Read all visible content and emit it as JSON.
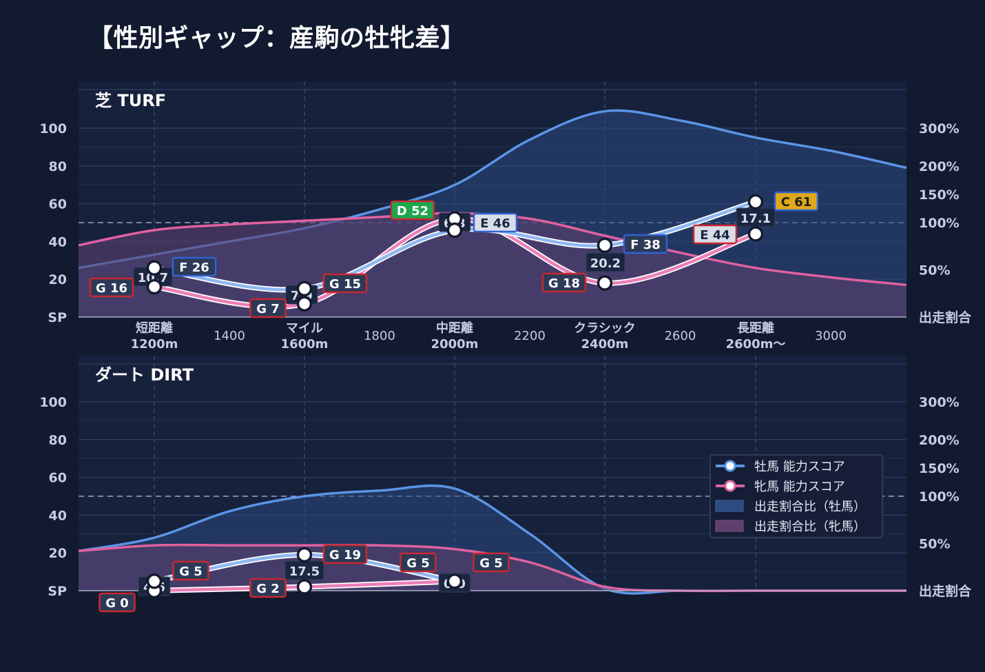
{
  "title": "【性別ギャップ：産駒の牡牝差】",
  "colors": {
    "background": "#121a30",
    "panel": "#16213c",
    "male": "#5b95e6",
    "female": "#e0619f",
    "male_area": "#2c4b80",
    "female_area": "#5e3f6e",
    "grade_G": "#c9282f",
    "grade_F": "#2f63d3",
    "grade_E_male": "#2f63d3",
    "grade_E_female": "#c9282f",
    "grade_D": "#1fa64f",
    "grade_C": "#e0a818"
  },
  "chart_data": [
    {
      "panel_title": "芝 TURF",
      "type": "line",
      "y_ticks": [
        "100",
        "80",
        "60",
        "40",
        "20",
        "SP"
      ],
      "y_tick_values": [
        100,
        80,
        60,
        40,
        20,
        0
      ],
      "ylim": [
        0,
        120
      ],
      "right_ticks": [
        "300%",
        "200%",
        "150%",
        "100%",
        "50%",
        "出走割合"
      ],
      "x_major": [
        {
          "x": 1200,
          "line1": "短距離",
          "line2": "1200m"
        },
        {
          "x": 1600,
          "line1": "マイル",
          "line2": "1600m"
        },
        {
          "x": 2000,
          "line1": "中距離",
          "line2": "2000m"
        },
        {
          "x": 2400,
          "line1": "クラシック",
          "line2": "2400m"
        },
        {
          "x": 2800,
          "line1": "長距離",
          "line2": "2600m〜"
        }
      ],
      "x_minor": [
        "1400",
        "1800",
        "2200",
        "2600",
        "3000"
      ],
      "reference_line": 50,
      "male": {
        "x": [
          1200,
          1600,
          2000,
          2400,
          2800
        ],
        "values": [
          26,
          15,
          46,
          38,
          61
        ],
        "grades": [
          "F 26",
          "G 15",
          "E 46",
          "F 38",
          "C 61"
        ]
      },
      "female": {
        "x": [
          1200,
          1600,
          2000,
          2400,
          2800
        ],
        "values": [
          16,
          7,
          52,
          18,
          44
        ],
        "grades": [
          "G 16",
          "G 7",
          "D 52",
          "G 18",
          "E 44"
        ]
      },
      "gaps": [
        "10.7",
        "7.9",
        "6.3",
        "20.2",
        "17.1"
      ],
      "male_ratio_area": [
        26,
        33,
        40,
        47,
        57,
        70,
        94,
        109,
        104,
        95,
        88,
        79
      ],
      "female_ratio_area": [
        38,
        46,
        49,
        51,
        53,
        55,
        52,
        43,
        34,
        26,
        21,
        17
      ]
    },
    {
      "panel_title": "ダート DIRT",
      "type": "line",
      "y_ticks": [
        "100",
        "80",
        "60",
        "40",
        "20",
        "SP"
      ],
      "y_tick_values": [
        100,
        80,
        60,
        40,
        20,
        0
      ],
      "ylim": [
        0,
        120
      ],
      "right_ticks": [
        "300%",
        "200%",
        "150%",
        "100%",
        "50%",
        "出走割合"
      ],
      "reference_line": 50,
      "male": {
        "x": [
          1200,
          1600,
          2000
        ],
        "values": [
          5,
          19,
          5
        ],
        "grades": [
          "G 5",
          "G 19",
          "G 5"
        ]
      },
      "female": {
        "x": [
          1200,
          1600,
          2000
        ],
        "values": [
          0,
          2,
          5
        ],
        "grades": [
          "G 0",
          "G 2",
          "G 5"
        ]
      },
      "gaps": [
        "4.6",
        "17.5",
        "0.0"
      ],
      "male_ratio_area": [
        21,
        28,
        42,
        50,
        53,
        54,
        30,
        1,
        0,
        0,
        0,
        0
      ],
      "female_ratio_area": [
        21,
        24,
        24,
        24,
        24,
        22,
        15,
        2,
        0,
        0,
        0,
        0
      ],
      "legend": [
        {
          "label": "牡馬 能力スコア",
          "kind": "male-line"
        },
        {
          "label": "牝馬 能力スコア",
          "kind": "female-line"
        },
        {
          "label": "出走割合比（牡馬）",
          "kind": "male-area"
        },
        {
          "label": "出走割合比（牝馬）",
          "kind": "female-area"
        }
      ]
    }
  ]
}
